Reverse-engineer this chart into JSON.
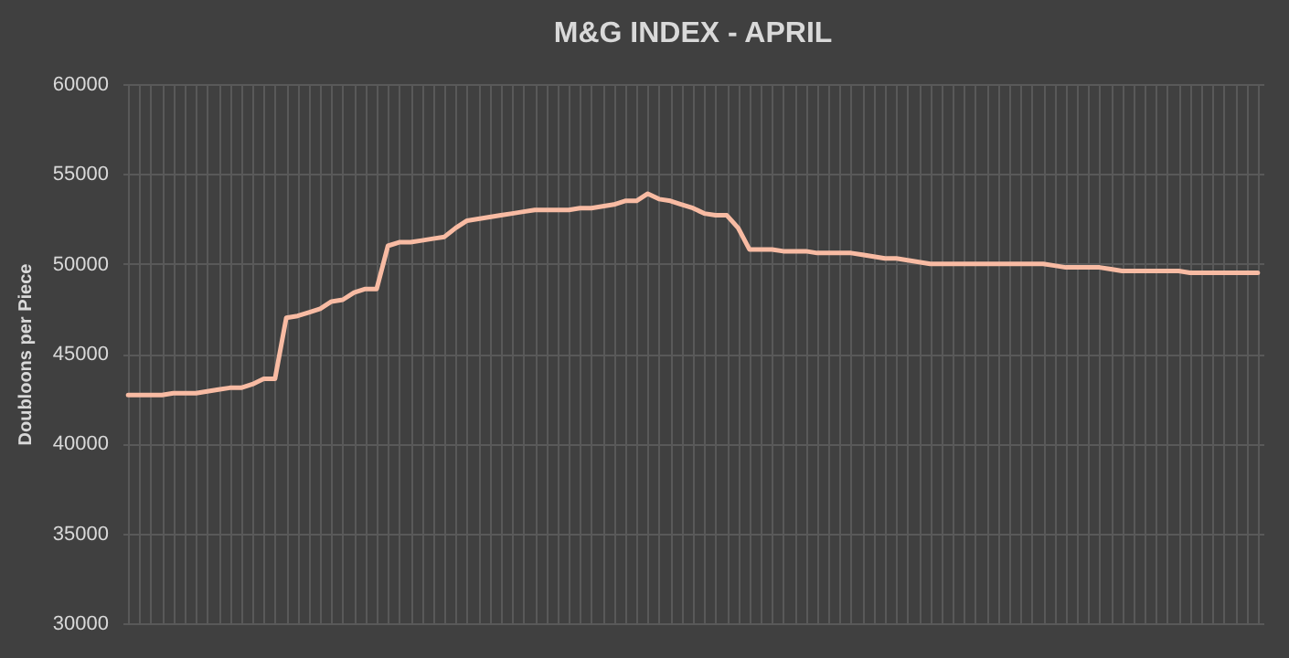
{
  "chart_data": {
    "type": "line",
    "title": "M&G INDEX - APRIL",
    "ylabel": "Doubloons  per Piece",
    "categories": [
      null,
      null,
      null,
      null,
      null,
      null,
      null,
      null,
      null,
      null,
      null,
      null,
      null,
      null,
      null,
      null,
      null,
      null,
      null,
      null,
      null,
      null,
      null,
      null,
      null,
      null,
      null,
      null,
      null,
      null,
      null,
      null,
      null,
      null,
      null,
      null,
      null,
      null,
      null,
      null,
      null,
      null,
      null,
      null,
      null,
      null,
      null,
      null,
      null,
      null,
      null,
      null,
      null,
      null,
      null,
      null,
      null,
      null,
      null,
      null,
      null,
      null,
      null,
      null,
      null,
      null,
      null,
      null,
      null,
      null,
      null,
      null,
      null,
      null,
      null,
      null,
      null,
      null,
      null,
      null,
      null,
      null,
      null,
      null,
      null,
      null,
      null,
      null,
      null,
      null,
      null,
      null,
      null,
      null,
      null,
      null,
      null,
      null,
      null,
      null,
      null
    ],
    "series": [
      {
        "color": "#f8bba3",
        "values": [
          42700,
          42700,
          42700,
          42700,
          42800,
          42800,
          42800,
          42900,
          43000,
          43100,
          43100,
          43300,
          43600,
          43600,
          47000,
          47100,
          47300,
          47500,
          47900,
          48000,
          48400,
          48600,
          48600,
          51000,
          51200,
          51200,
          51300,
          51400,
          51500,
          52000,
          52400,
          52500,
          52600,
          52700,
          52800,
          52900,
          53000,
          53000,
          53000,
          53000,
          53100,
          53100,
          53200,
          53300,
          53500,
          53500,
          53900,
          53600,
          53500,
          53300,
          53100,
          52800,
          52700,
          52700,
          52000,
          50800,
          50800,
          50800,
          50700,
          50700,
          50700,
          50600,
          50600,
          50600,
          50600,
          50500,
          50400,
          50300,
          50300,
          50200,
          50100,
          50000,
          50000,
          50000,
          50000,
          50000,
          50000,
          50000,
          50000,
          50000,
          50000,
          50000,
          49900,
          49800,
          49800,
          49800,
          49800,
          49700,
          49600,
          49600,
          49600,
          49600,
          49600,
          49600,
          49500,
          49500,
          49500,
          49500,
          49500,
          49500,
          49500
        ]
      }
    ],
    "ylim": [
      30000,
      60000
    ],
    "yticks": [
      30000,
      35000,
      40000,
      45000,
      50000,
      55000,
      60000
    ],
    "grid": true,
    "tick_labels": "y",
    "marker": "none",
    "line_style": "solid"
  }
}
